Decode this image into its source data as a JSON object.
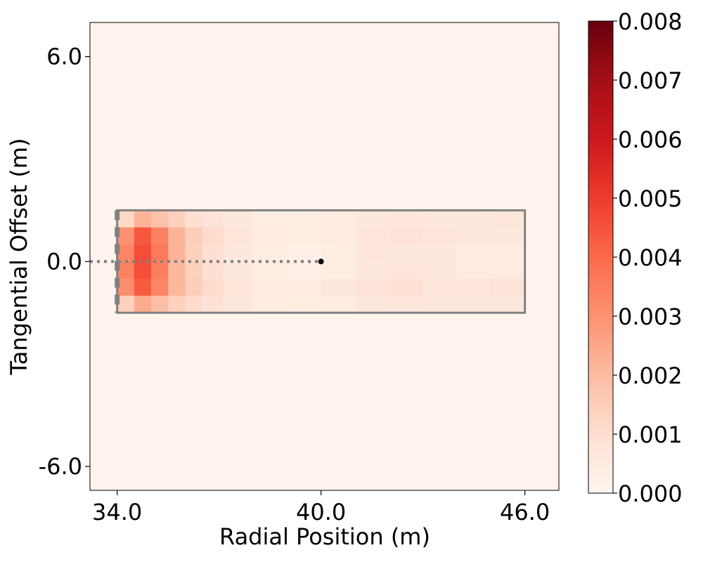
{
  "chart_data": {
    "type": "heatmap",
    "title": "",
    "xlabel": "Radial Position (m)",
    "ylabel": "Tangential Offset (m)",
    "xlim": [
      33.2,
      47.0
    ],
    "ylim": [
      -6.7,
      7.0
    ],
    "xticks": [
      34.0,
      40.0,
      46.0
    ],
    "xtick_labels": [
      "34.0",
      "40.0",
      "46.0"
    ],
    "yticks": [
      -6.0,
      0.0,
      6.0
    ],
    "ytick_labels": [
      "-6.0",
      "0.0",
      "6.0"
    ],
    "colormap": "Reds",
    "colorbar": {
      "vmin": 0.0,
      "vmax": 0.008,
      "ticks": [
        0.0,
        0.001,
        0.002,
        0.003,
        0.004,
        0.005,
        0.006,
        0.007,
        0.008
      ],
      "tick_labels": [
        "0.000",
        "0.001",
        "0.002",
        "0.003",
        "0.004",
        "0.005",
        "0.006",
        "0.007",
        "0.008"
      ]
    },
    "grid": false,
    "density_region": {
      "x_range": [
        34.0,
        46.0
      ],
      "y_range": [
        -1.5,
        1.5
      ],
      "x_bin_centers": [
        34.25,
        34.75,
        35.25,
        35.75,
        36.25,
        36.75,
        37.5,
        38.5,
        39.5,
        40.5,
        41.5,
        42.5,
        43.5,
        44.5,
        45.5
      ],
      "y_bin_centers": [
        1.25,
        0.75,
        0.25,
        -0.25,
        -0.75,
        -1.25
      ],
      "values": [
        [
          0.0012,
          0.0022,
          0.0018,
          0.0014,
          0.001,
          0.0008,
          0.0006,
          0.0004,
          0.0004,
          0.0005,
          0.0006,
          0.0007,
          0.0006,
          0.0006,
          0.0007
        ],
        [
          0.003,
          0.0044,
          0.0034,
          0.0022,
          0.0015,
          0.0011,
          0.0007,
          0.0005,
          0.0004,
          0.0005,
          0.0007,
          0.0008,
          0.0007,
          0.0006,
          0.0006
        ],
        [
          0.0033,
          0.0046,
          0.0036,
          0.0022,
          0.0014,
          0.001,
          0.0006,
          0.0004,
          0.0003,
          0.0004,
          0.0007,
          0.0006,
          0.0006,
          0.0005,
          0.0005
        ],
        [
          0.0034,
          0.0046,
          0.0035,
          0.0021,
          0.0014,
          0.001,
          0.0006,
          0.0004,
          0.0003,
          0.0004,
          0.0006,
          0.0007,
          0.0006,
          0.0005,
          0.0005
        ],
        [
          0.0031,
          0.0043,
          0.0033,
          0.0021,
          0.0015,
          0.0011,
          0.0007,
          0.0005,
          0.0005,
          0.0006,
          0.0008,
          0.0009,
          0.0007,
          0.0007,
          0.0008
        ],
        [
          0.0014,
          0.0024,
          0.0019,
          0.0014,
          0.0011,
          0.0009,
          0.0006,
          0.0005,
          0.0004,
          0.0005,
          0.0006,
          0.0007,
          0.0006,
          0.0006,
          0.0006
        ]
      ]
    },
    "background_value": 0.0001,
    "annotations": {
      "box": {
        "x": [
          34.0,
          46.0
        ],
        "y": [
          -1.5,
          1.5
        ],
        "color": "#808080"
      },
      "dashed_edge": {
        "x": 34.0,
        "y": [
          -1.5,
          1.5
        ],
        "color": "#808080"
      },
      "dotted_line": {
        "x": [
          33.2,
          40.0
        ],
        "y": 0.0,
        "color": "#808080"
      },
      "point": {
        "x": 40.0,
        "y": 0.0,
        "color": "#000000"
      }
    }
  }
}
